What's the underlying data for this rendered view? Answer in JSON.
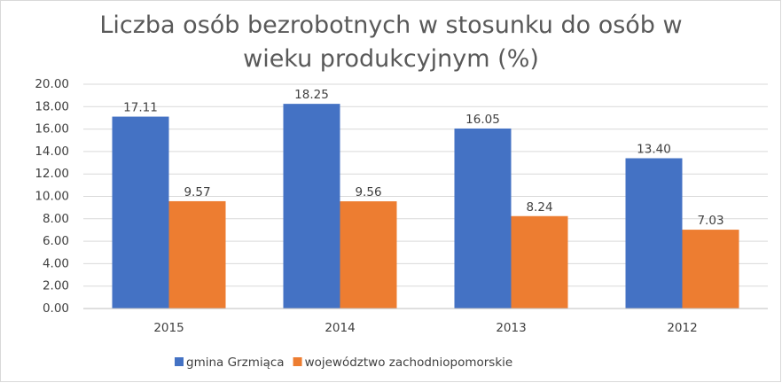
{
  "chart_data": {
    "type": "bar",
    "title": "Liczba osób bezrobotnych w stosunku do osób w wieku produkcyjnym (%)",
    "categories": [
      "2015",
      "2014",
      "2013",
      "2012"
    ],
    "series": [
      {
        "name": "gmina Grzmiąca",
        "color": "#4472c4",
        "values": [
          17.11,
          18.25,
          16.05,
          13.4
        ],
        "value_labels": [
          "17.11",
          "18.25",
          "16.05",
          "13.40"
        ]
      },
      {
        "name": "województwo zachodniopomorskie",
        "color": "#ed7d31",
        "values": [
          9.57,
          9.56,
          8.24,
          7.03
        ],
        "value_labels": [
          "9.57",
          "9.56",
          "8.24",
          "7.03"
        ]
      }
    ],
    "ylim": [
      0,
      20
    ],
    "yticks": [
      {
        "value": 0,
        "label": "0.00"
      },
      {
        "value": 2,
        "label": "2.00"
      },
      {
        "value": 4,
        "label": "4.00"
      },
      {
        "value": 6,
        "label": "6.00"
      },
      {
        "value": 8,
        "label": "8.00"
      },
      {
        "value": 10,
        "label": "10.00"
      },
      {
        "value": 12,
        "label": "12.00"
      },
      {
        "value": 14,
        "label": "14.00"
      },
      {
        "value": 16,
        "label": "16.00"
      },
      {
        "value": 18,
        "label": "18.00"
      },
      {
        "value": 20,
        "label": "20.00"
      }
    ],
    "grid": true,
    "legend": "bottom"
  }
}
